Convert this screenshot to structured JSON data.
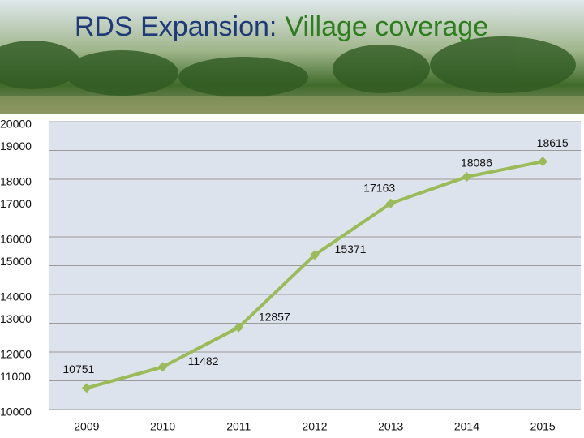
{
  "chart_data": {
    "type": "line",
    "title_parts": [
      "RDS Expansion:",
      "Village coverage"
    ],
    "categories": [
      "2009",
      "2010",
      "2011",
      "2012",
      "2013",
      "2014",
      "2015"
    ],
    "values": [
      10751,
      11482,
      12857,
      15371,
      17163,
      18086,
      18615
    ],
    "color": "#9bbb59",
    "ylim": [
      10000,
      20000
    ],
    "yticks": [
      10000,
      11000,
      12000,
      13000,
      14000,
      15000,
      16000,
      17000,
      18000,
      19000,
      20000
    ],
    "grid": true
  }
}
